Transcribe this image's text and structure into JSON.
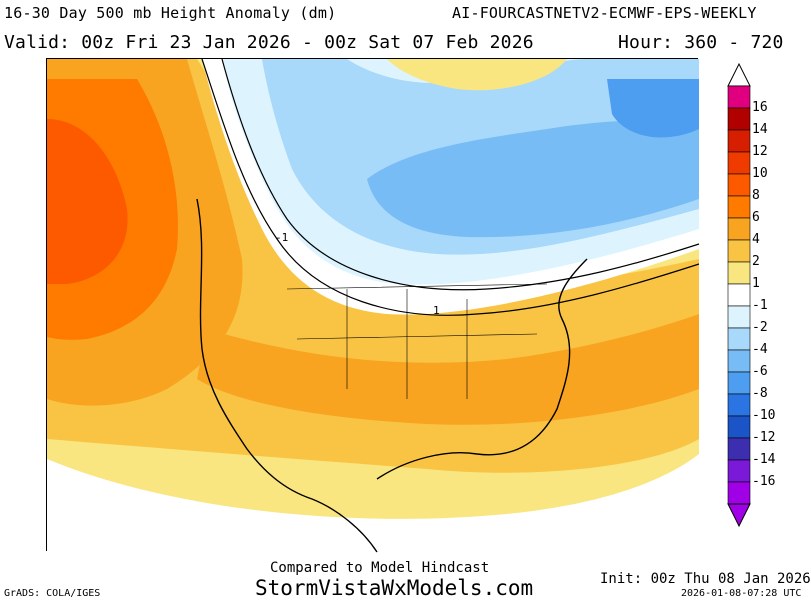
{
  "header": {
    "title_left": "16-30 Day 500 mb Height Anomaly (dm)",
    "title_right": "AI-FOURCASTNETV2-ECMWF-EPS-WEEKLY",
    "valid_text": "Valid: 00z Fri 23 Jan 2026 - 00z Sat 07 Feb 2026",
    "hour_text": "Hour: 360 - 720"
  },
  "colorbar": {
    "labels": [
      "16",
      "14",
      "12",
      "10",
      "8",
      "6",
      "4",
      "2",
      "1",
      "-1",
      "-2",
      "-4",
      "-6",
      "-8",
      "-10",
      "-12",
      "-14",
      "-16"
    ],
    "colors": [
      "#e0007f",
      "#b00000",
      "#d61e00",
      "#f03b00",
      "#fd5a00",
      "#fe7b00",
      "#f9a420",
      "#f9c444",
      "#f9e680",
      "#ffffff",
      "#ddf4ff",
      "#a8d8fa",
      "#78bcf5",
      "#4d9df0",
      "#2a75e3",
      "#1b54c6",
      "#3d2eb0",
      "#7a1ad8",
      "#a000e6"
    ]
  },
  "map_contours": [
    {
      "level": "1",
      "label": "1"
    },
    {
      "level": "-1",
      "label": "-1"
    }
  ],
  "footer": {
    "compared_text": "Compared to Model Hindcast",
    "site_text": "StormVistaWxModels.com",
    "init_text": "Init: 00z Thu 08 Jan 2026",
    "grads_text": "GrADS: COLA/IGES",
    "timestamp_text": "2026-01-08-07:28 UTC"
  }
}
